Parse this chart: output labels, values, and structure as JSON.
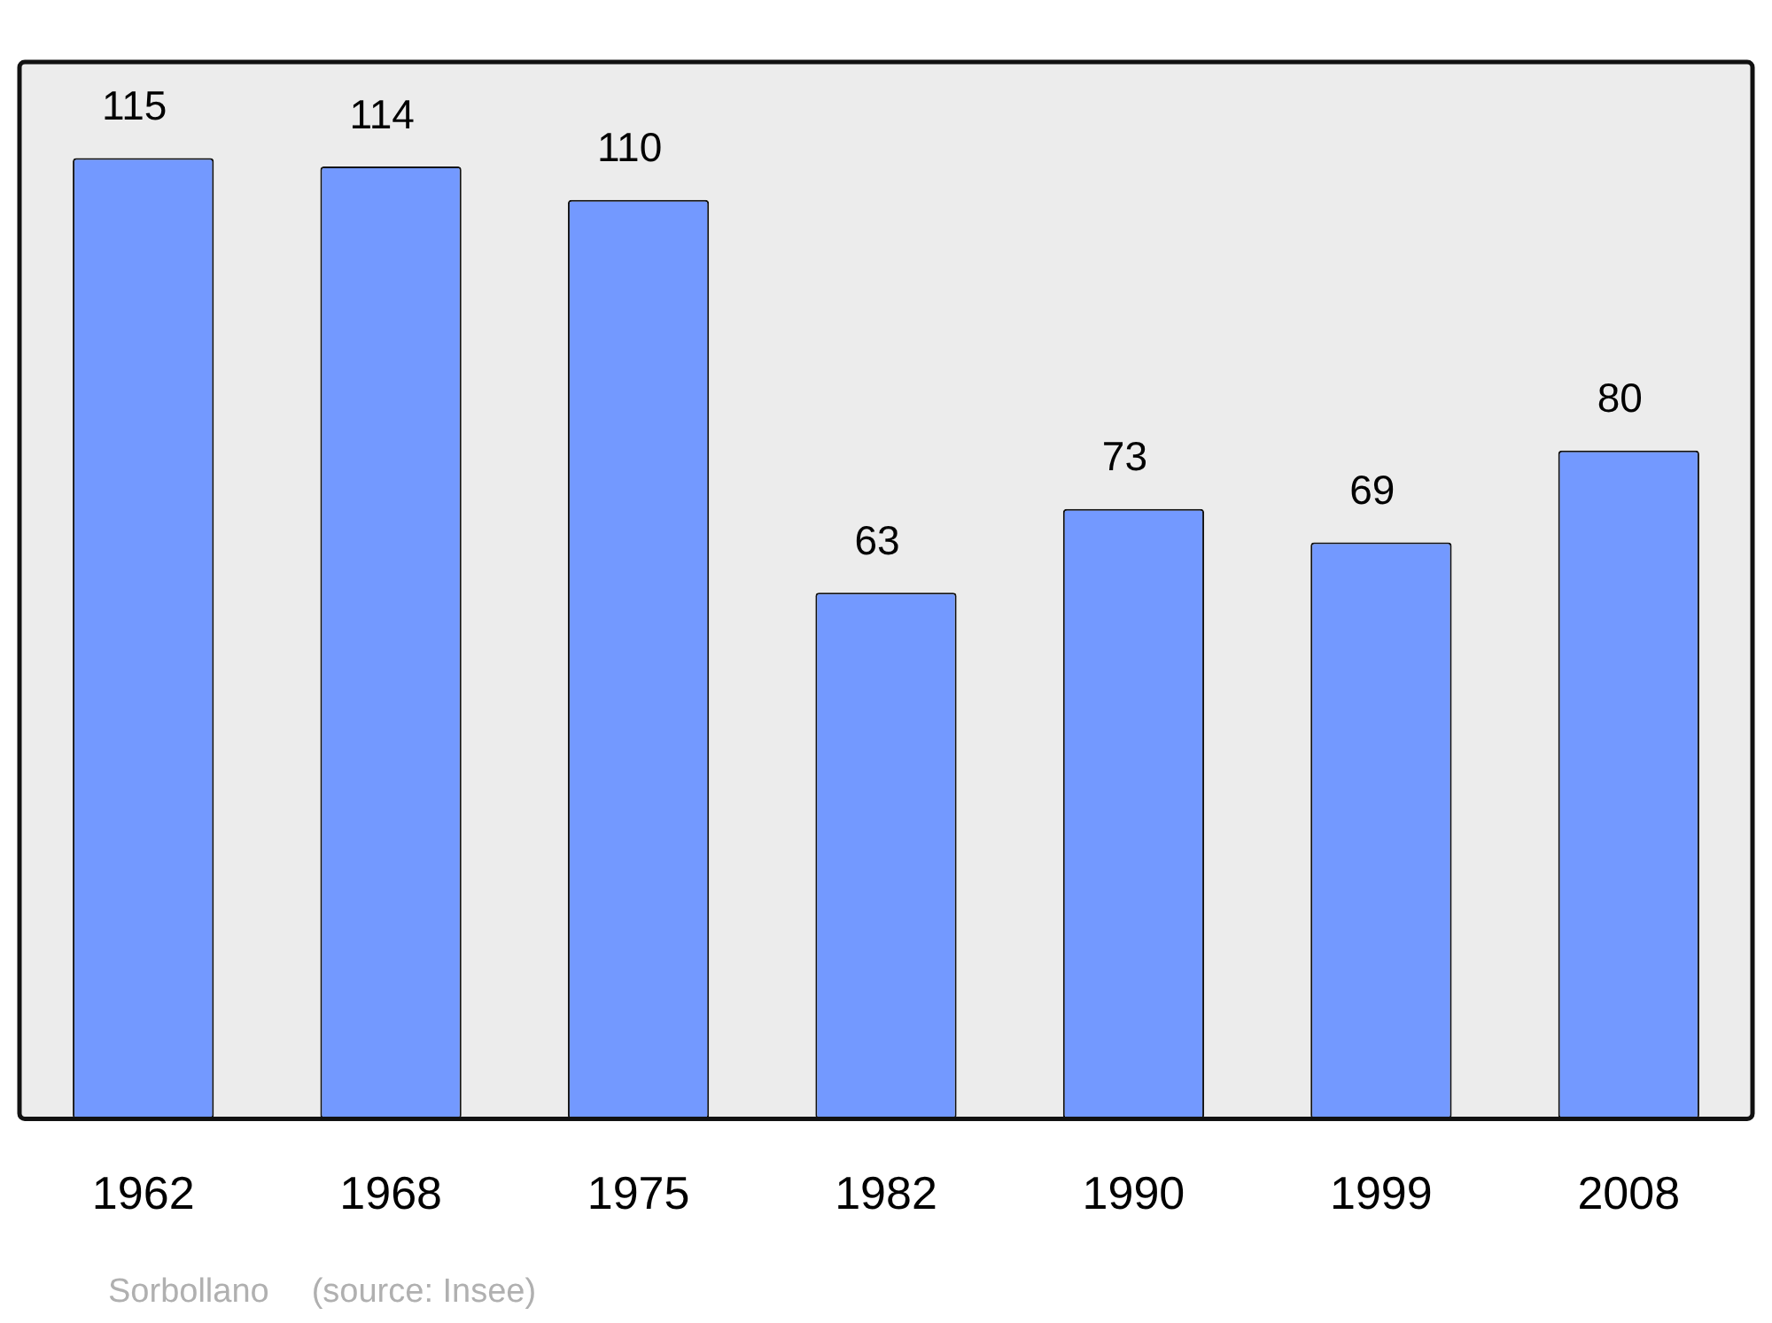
{
  "chart_data": {
    "type": "bar",
    "categories": [
      "1962",
      "1968",
      "1975",
      "1982",
      "1990",
      "1999",
      "2008"
    ],
    "values": [
      115,
      114,
      110,
      63,
      73,
      69,
      80
    ],
    "color": "#7399ff",
    "data_labels": true,
    "annotations": [
      "Sorbollano",
      "(source: Insee)"
    ]
  }
}
